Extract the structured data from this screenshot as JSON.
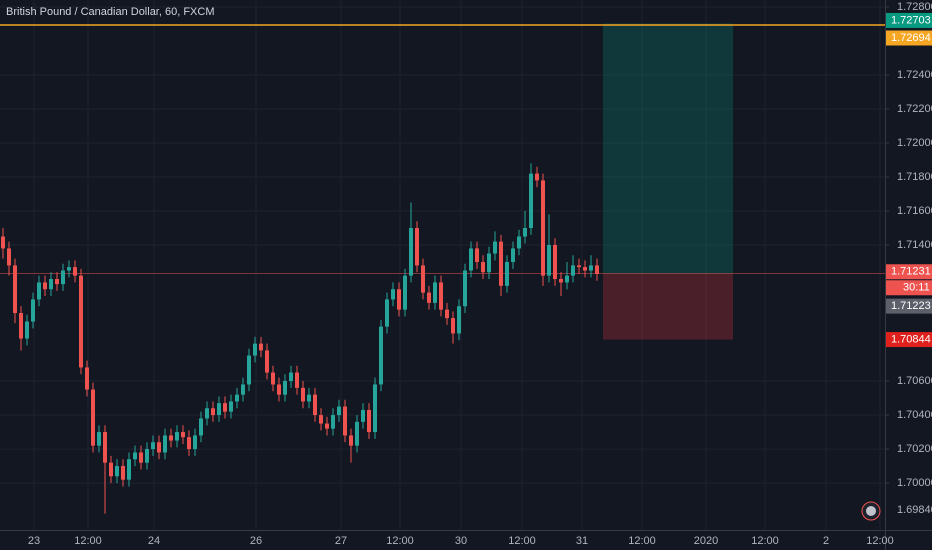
{
  "chart_data": {
    "type": "candlestick",
    "title": "British Pound / Canadian Dollar, 60, FXCM",
    "xlabels": [
      "23",
      "12:00",
      "24",
      "26",
      "27",
      "12:00",
      "30",
      "12:00",
      "31",
      "12:00",
      "2020",
      "12:00",
      "2",
      "12:00"
    ],
    "ylim": [
      1.69724,
      1.72841
    ],
    "yticks": [
      {
        "value": 1.728,
        "label": "1.72800"
      },
      {
        "value": 1.724,
        "label": "1.72400"
      },
      {
        "value": 1.722,
        "label": "1.72200"
      },
      {
        "value": 1.72,
        "label": "1.72000"
      },
      {
        "value": 1.718,
        "label": "1.71800"
      },
      {
        "value": 1.716,
        "label": "1.71600"
      },
      {
        "value": 1.714,
        "label": "1.71400"
      },
      {
        "value": 1.706,
        "label": "1.70600"
      },
      {
        "value": 1.704,
        "label": "1.70400"
      },
      {
        "value": 1.702,
        "label": "1.70200"
      },
      {
        "value": 1.7,
        "label": "1.70000"
      }
    ],
    "grid": true,
    "colors": {
      "up": "#26a69a",
      "down": "#ef5350"
    },
    "candles": [
      [
        1.7145,
        1.715,
        1.7132,
        1.7138
      ],
      [
        1.7138,
        1.7142,
        1.7122,
        1.7128
      ],
      [
        1.7128,
        1.7132,
        1.7094,
        1.71
      ],
      [
        1.71,
        1.7104,
        1.7078,
        1.7085
      ],
      [
        1.7085,
        1.7099,
        1.7081,
        1.7095
      ],
      [
        1.7095,
        1.7112,
        1.7091,
        1.7108
      ],
      [
        1.7108,
        1.7122,
        1.7104,
        1.7118
      ],
      [
        1.7118,
        1.7122,
        1.711,
        1.7114
      ],
      [
        1.7114,
        1.7124,
        1.711,
        1.712
      ],
      [
        1.712,
        1.7124,
        1.7113,
        1.7117
      ],
      [
        1.7117,
        1.7129,
        1.7113,
        1.7125
      ],
      [
        1.7125,
        1.7131,
        1.7121,
        1.7127
      ],
      [
        1.7127,
        1.7131,
        1.7118,
        1.7122
      ],
      [
        1.7122,
        1.7126,
        1.7064,
        1.7068
      ],
      [
        1.7068,
        1.7072,
        1.7051,
        1.7055
      ],
      [
        1.7055,
        1.7059,
        1.7018,
        1.7022
      ],
      [
        1.7022,
        1.7034,
        1.7018,
        1.703
      ],
      [
        1.703,
        1.7034,
        1.6982,
        1.7012
      ],
      [
        1.7012,
        1.7016,
        1.7,
        1.7004
      ],
      [
        1.7004,
        1.7014,
        1.7,
        1.701
      ],
      [
        1.701,
        1.7014,
        1.6998,
        1.7002
      ],
      [
        1.7002,
        1.7018,
        1.6998,
        1.7014
      ],
      [
        1.7014,
        1.7022,
        1.701,
        1.7018
      ],
      [
        1.7018,
        1.7022,
        1.7008,
        1.7012
      ],
      [
        1.7012,
        1.7024,
        1.7008,
        1.702
      ],
      [
        1.702,
        1.7028,
        1.7016,
        1.7024
      ],
      [
        1.7024,
        1.7028,
        1.7014,
        1.7018
      ],
      [
        1.7018,
        1.7032,
        1.7014,
        1.7028
      ],
      [
        1.7028,
        1.7032,
        1.7021,
        1.7025
      ],
      [
        1.7025,
        1.7034,
        1.7021,
        1.703
      ],
      [
        1.703,
        1.7034,
        1.7023,
        1.7027
      ],
      [
        1.7027,
        1.7031,
        1.7016,
        1.702
      ],
      [
        1.702,
        1.7032,
        1.7016,
        1.7028
      ],
      [
        1.7028,
        1.7042,
        1.7024,
        1.7038
      ],
      [
        1.7038,
        1.7048,
        1.7034,
        1.7044
      ],
      [
        1.7044,
        1.7048,
        1.7036,
        1.704
      ],
      [
        1.704,
        1.7051,
        1.7036,
        1.7047
      ],
      [
        1.7047,
        1.7051,
        1.7038,
        1.7042
      ],
      [
        1.7042,
        1.7052,
        1.7038,
        1.7048
      ],
      [
        1.7048,
        1.7056,
        1.7044,
        1.7052
      ],
      [
        1.7052,
        1.7062,
        1.7048,
        1.7058
      ],
      [
        1.7058,
        1.7079,
        1.7054,
        1.7075
      ],
      [
        1.7075,
        1.7086,
        1.7071,
        1.7082
      ],
      [
        1.7082,
        1.7086,
        1.7074,
        1.7078
      ],
      [
        1.7078,
        1.7082,
        1.7061,
        1.7065
      ],
      [
        1.7065,
        1.7069,
        1.7054,
        1.7058
      ],
      [
        1.7058,
        1.7062,
        1.7048,
        1.7052
      ],
      [
        1.7052,
        1.7064,
        1.7048,
        1.706
      ],
      [
        1.706,
        1.7069,
        1.7056,
        1.7065
      ],
      [
        1.7065,
        1.7069,
        1.7052,
        1.7056
      ],
      [
        1.7056,
        1.706,
        1.7044,
        1.7048
      ],
      [
        1.7048,
        1.7056,
        1.7044,
        1.7052
      ],
      [
        1.7052,
        1.7056,
        1.7036,
        1.704
      ],
      [
        1.704,
        1.7044,
        1.7031,
        1.7035
      ],
      [
        1.7035,
        1.7039,
        1.7028,
        1.7032
      ],
      [
        1.7032,
        1.7044,
        1.7028,
        1.704
      ],
      [
        1.704,
        1.7049,
        1.7036,
        1.7045
      ],
      [
        1.7045,
        1.7049,
        1.7024,
        1.7028
      ],
      [
        1.7028,
        1.7032,
        1.7012,
        1.7022
      ],
      [
        1.7022,
        1.704,
        1.7018,
        1.7036
      ],
      [
        1.7036,
        1.7047,
        1.7032,
        1.7043
      ],
      [
        1.7043,
        1.7047,
        1.7026,
        1.703
      ],
      [
        1.703,
        1.7062,
        1.7026,
        1.7058
      ],
      [
        1.7058,
        1.7096,
        1.7054,
        1.7092
      ],
      [
        1.7092,
        1.7112,
        1.7088,
        1.7108
      ],
      [
        1.7108,
        1.7118,
        1.7104,
        1.7114
      ],
      [
        1.7114,
        1.7118,
        1.7098,
        1.7102
      ],
      [
        1.7102,
        1.7126,
        1.7098,
        1.7122
      ],
      [
        1.7122,
        1.7165,
        1.7118,
        1.715
      ],
      [
        1.715,
        1.7154,
        1.7124,
        1.7128
      ],
      [
        1.7128,
        1.7132,
        1.7108,
        1.7112
      ],
      [
        1.7112,
        1.7116,
        1.7102,
        1.7106
      ],
      [
        1.7106,
        1.7122,
        1.7102,
        1.7118
      ],
      [
        1.7118,
        1.7122,
        1.7098,
        1.7102
      ],
      [
        1.7102,
        1.7106,
        1.7093,
        1.7097
      ],
      [
        1.7097,
        1.7101,
        1.7082,
        1.7088
      ],
      [
        1.7088,
        1.7108,
        1.7084,
        1.7104
      ],
      [
        1.7104,
        1.7129,
        1.71,
        1.7125
      ],
      [
        1.7125,
        1.7142,
        1.7121,
        1.7138
      ],
      [
        1.7138,
        1.7142,
        1.7126,
        1.713
      ],
      [
        1.713,
        1.7134,
        1.712,
        1.7124
      ],
      [
        1.7124,
        1.7139,
        1.712,
        1.7135
      ],
      [
        1.7135,
        1.7148,
        1.7131,
        1.7142
      ],
      [
        1.7142,
        1.7146,
        1.711,
        1.7116
      ],
      [
        1.7116,
        1.7134,
        1.7112,
        1.713
      ],
      [
        1.713,
        1.7142,
        1.7126,
        1.7138
      ],
      [
        1.7138,
        1.7149,
        1.7134,
        1.7145
      ],
      [
        1.7145,
        1.716,
        1.7141,
        1.715
      ],
      [
        1.715,
        1.7188,
        1.7146,
        1.7182
      ],
      [
        1.7182,
        1.7186,
        1.7174,
        1.7178
      ],
      [
        1.7178,
        1.7182,
        1.7116,
        1.7122
      ],
      [
        1.7122,
        1.7158,
        1.7118,
        1.714
      ],
      [
        1.714,
        1.7144,
        1.7116,
        1.712
      ],
      [
        1.712,
        1.7124,
        1.711,
        1.7118
      ],
      [
        1.7118,
        1.713,
        1.7114,
        1.7122
      ],
      [
        1.7122,
        1.7134,
        1.7118,
        1.7128
      ],
      [
        1.7128,
        1.7132,
        1.7123,
        1.7127
      ],
      [
        1.7127,
        1.7131,
        1.7121,
        1.7125
      ],
      [
        1.7125,
        1.7134,
        1.7121,
        1.7128
      ],
      [
        1.7128,
        1.7132,
        1.7119,
        1.7123
      ]
    ],
    "position": {
      "target": 1.72703,
      "entry": 1.71231,
      "stop": 1.70844
    },
    "horizontal_line": {
      "value": 1.72694,
      "color": "#f5a623"
    },
    "price_labels": [
      {
        "value": 1.72703,
        "color": "#089981"
      },
      {
        "value": 1.72694,
        "color": "#f5a623"
      },
      {
        "value": 1.71231,
        "color": "#ef5350"
      },
      {
        "value": 1.71223,
        "color": "#5d606b"
      },
      {
        "value": 1.70844,
        "color": "#e0201c"
      }
    ],
    "countdown": "30:11",
    "crosshair": {
      "value": 1.6984,
      "label": "1.69840"
    }
  }
}
